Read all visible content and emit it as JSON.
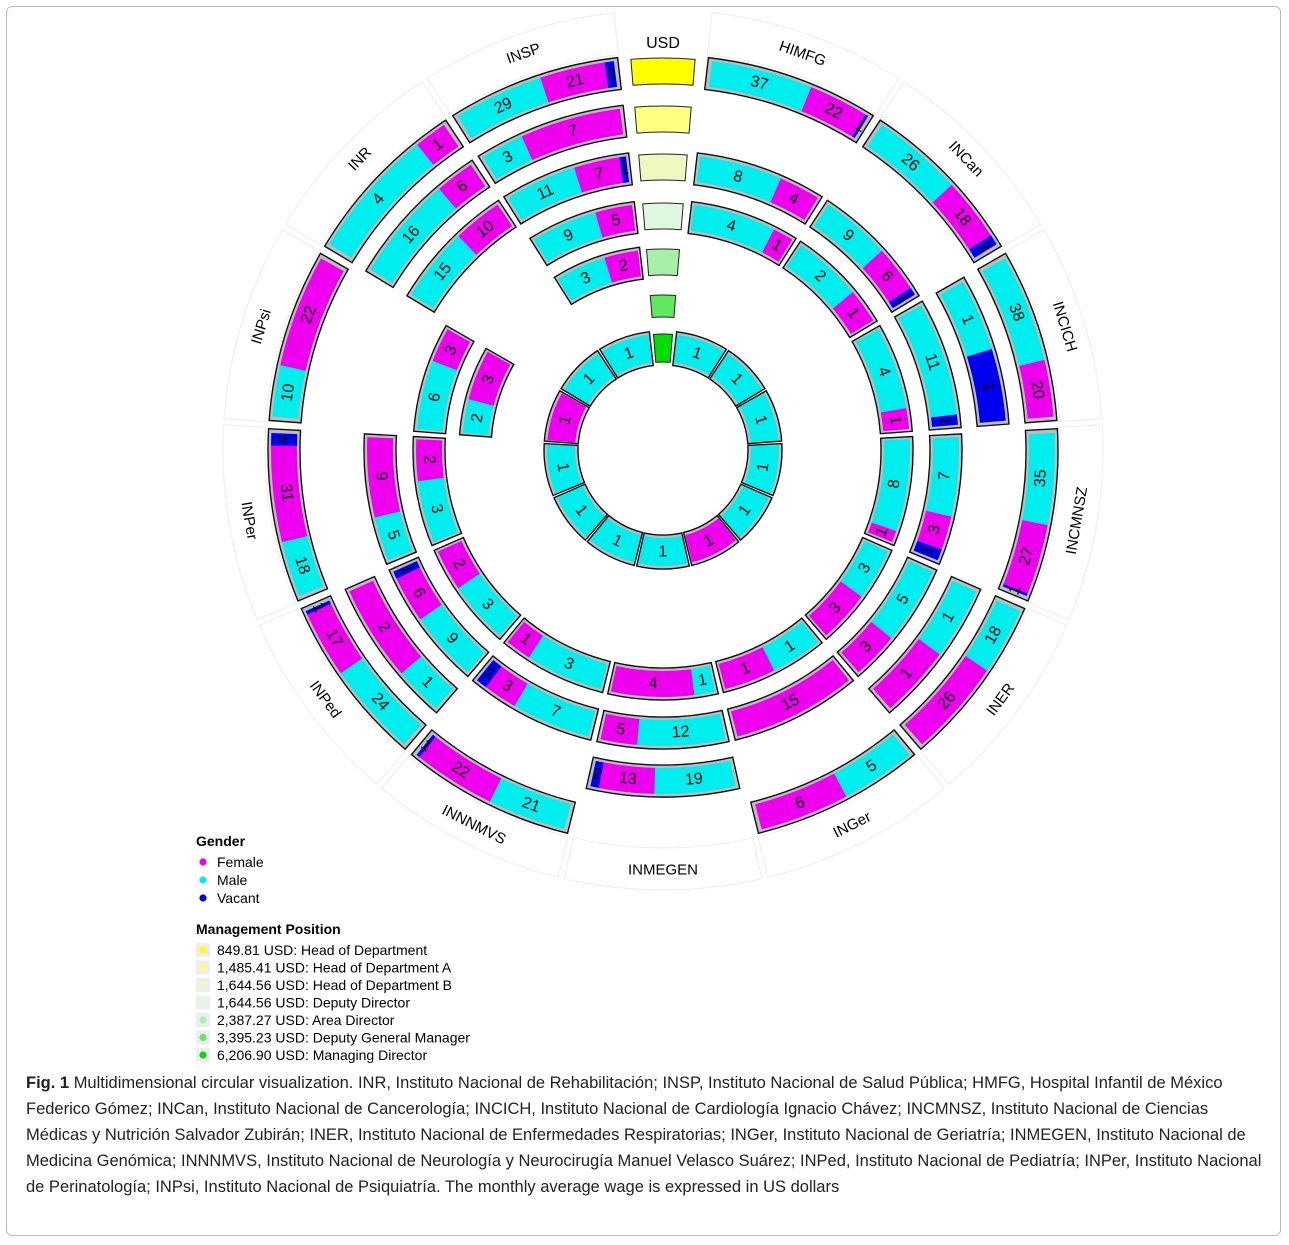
{
  "figure": {
    "label": "Fig. 1",
    "caption": "Multidimensional circular visualization. INR, Instituto Nacional de Rehabilitación; INSP, Instituto Nacional de Salud Pública; HMFG, Hospital Infantil de México Federico Gómez; INCan, Instituto Nacional de Cancerología; INCICH, Instituto Nacional de Cardiología Ignacio Chávez; INCMNSZ, Instituto Nacional de Ciencias Médicas y Nutrición Salvador Zubirán; INER, Instituto Nacional de Enfermedades Respiratorias; INGer, Instituto Nacional de Geriatría; INMEGEN, Instituto Nacional de Medicina Genómica; INNNMVS, Instituto Nacional de Neurología y Neurocirugía Manuel Velasco Suárez; INPed, Instituto Nacional de Pediatría; INPer, Instituto Nacional de Perinatología; INPsi, Instituto Nacional de Psiquiatría. The monthly average wage is expressed in US dollars"
  },
  "chart_data": {
    "type": "circular-stacked-bar",
    "usd_label": "USD",
    "institutions": [
      "HIMFG",
      "INCan",
      "INCICH",
      "INCMNSZ",
      "INER",
      "INGer",
      "INMEGEN",
      "INNNMVS",
      "INPed",
      "INPer",
      "INPsi",
      "INR",
      "INSP"
    ],
    "colors": {
      "Female": "#ee00ee",
      "Male": "#00eeee",
      "Vacant": "#0000ee"
    },
    "levels": [
      {
        "name": "Head of Department",
        "usd": "849.81",
        "color": "#ffff00",
        "values": {
          "HIMFG": {
            "Male": 37,
            "Female": 22,
            "Vacant": 1
          },
          "INCan": {
            "Male": 26,
            "Female": 18,
            "Vacant": 3
          },
          "INCICH": {
            "Male": 38,
            "Female": 20,
            "Vacant": 0
          },
          "INCMNSZ": {
            "Male": 35,
            "Female": 27,
            "Vacant": 1
          },
          "INER": {
            "Male": 18,
            "Female": 26,
            "Vacant": 0
          },
          "INGer": {
            "Male": 5,
            "Female": 6,
            "Vacant": 0
          },
          "INNNMVS": {
            "Male": 21,
            "Female": 22,
            "Vacant": 1
          },
          "INPed": {
            "Male": 24,
            "Female": 17,
            "Vacant": 1
          },
          "INPer": {
            "Male": 18,
            "Female": 31,
            "Vacant": 4
          },
          "INPsi": {
            "Male": 10,
            "Female": 22,
            "Vacant": 0
          },
          "INR": {
            "Male": 4,
            "Female": 1,
            "Vacant": 0
          },
          "INSP": {
            "Male": 29,
            "Female": 21,
            "Vacant": 3
          }
        }
      },
      {
        "name": "Head of Department A",
        "usd": "1,485.41",
        "color": "#ffff80",
        "values": {
          "INCICH": {
            "Male": 1,
            "Female": 0,
            "Vacant": 1
          },
          "INER": {
            "Male": 1,
            "Female": 1,
            "Vacant": 0
          },
          "INMEGEN": {
            "Male": 19,
            "Female": 13,
            "Vacant": 2
          },
          "INPed": {
            "Male": 1,
            "Female": 2,
            "Vacant": 0
          },
          "INR": {
            "Male": 16,
            "Female": 6,
            "Vacant": 0
          },
          "INSP": {
            "Male": 3,
            "Female": 7,
            "Vacant": 0
          }
        }
      },
      {
        "name": "Head of Department B",
        "usd": "1,644.56",
        "color": "#f0f8c0",
        "values": {
          "HIMFG": {
            "Male": 8,
            "Female": 4,
            "Vacant": 0
          },
          "INCan": {
            "Male": 9,
            "Female": 6,
            "Vacant": 1
          },
          "INCICH": {
            "Male": 11,
            "Female": 0,
            "Vacant": 1
          },
          "INCMNSZ": {
            "Male": 7,
            "Female": 3,
            "Vacant": 1
          },
          "INER": {
            "Male": 5,
            "Female": 3,
            "Vacant": 0
          },
          "INGer": {
            "Male": 0,
            "Female": 15,
            "Vacant": 0
          },
          "INMEGEN": {
            "Male": 12,
            "Female": 5,
            "Vacant": 0
          },
          "INNNMVS": {
            "Male": 7,
            "Female": 3,
            "Vacant": 1
          },
          "INPed": {
            "Male": 9,
            "Female": 6,
            "Vacant": 1
          },
          "INPer": {
            "Male": 5,
            "Female": 9,
            "Vacant": 0
          },
          "INR": {
            "Male": 15,
            "Female": 10,
            "Vacant": 0
          },
          "INSP": {
            "Male": 11,
            "Female": 7,
            "Vacant": 1
          }
        }
      },
      {
        "name": "Deputy Director",
        "usd": "1,644.56",
        "color": "#e0f8e0",
        "values": {
          "HIMFG": {
            "Male": 4,
            "Female": 1,
            "Vacant": 0
          },
          "INCan": {
            "Male": 2,
            "Female": 1,
            "Vacant": 0
          },
          "INCICH": {
            "Male": 4,
            "Female": 1,
            "Vacant": 0
          },
          "INCMNSZ": {
            "Male": 8,
            "Female": 1,
            "Vacant": 0
          },
          "INER": {
            "Male": 3,
            "Female": 3,
            "Vacant": 0
          },
          "INGer": {
            "Male": 1,
            "Female": 1,
            "Vacant": 0
          },
          "INMEGEN": {
            "Male": 1,
            "Female": 4,
            "Vacant": 0
          },
          "INNNMVS": {
            "Male": 3,
            "Female": 1,
            "Vacant": 0
          },
          "INPed": {
            "Male": 3,
            "Female": 2,
            "Vacant": 0
          },
          "INPer": {
            "Male": 3,
            "Female": 2,
            "Vacant": 0
          },
          "INPsi": {
            "Male": 6,
            "Female": 3,
            "Vacant": 0
          },
          "INSP": {
            "Male": 9,
            "Female": 5,
            "Vacant": 0
          }
        }
      },
      {
        "name": "Area Director",
        "usd": "2,387.27",
        "color": "#a8f0a8",
        "values": {
          "INPsi": {
            "Male": 2,
            "Female": 3,
            "Vacant": 0
          },
          "INSP": {
            "Male": 3,
            "Female": 2,
            "Vacant": 0
          }
        }
      },
      {
        "name": "Deputy General Manager",
        "usd": "3,395.23",
        "color": "#60e860",
        "values": {}
      },
      {
        "name": "Managing Director",
        "usd": "6,206.90",
        "color": "#00dd00",
        "values": {
          "HIMFG": {
            "Male": 1,
            "Female": 0,
            "Vacant": 0
          },
          "INCan": {
            "Male": 1,
            "Female": 0,
            "Vacant": 0
          },
          "INCICH": {
            "Male": 1,
            "Female": 0,
            "Vacant": 0
          },
          "INCMNSZ": {
            "Male": 1,
            "Female": 0,
            "Vacant": 0
          },
          "INER": {
            "Male": 1,
            "Female": 0,
            "Vacant": 0
          },
          "INGer": {
            "Male": 0,
            "Female": 1,
            "Vacant": 0
          },
          "INMEGEN": {
            "Male": 1,
            "Female": 0,
            "Vacant": 0
          },
          "INNNMVS": {
            "Male": 1,
            "Female": 0,
            "Vacant": 0
          },
          "INPed": {
            "Male": 1,
            "Female": 0,
            "Vacant": 0
          },
          "INPer": {
            "Male": 1,
            "Female": 0,
            "Vacant": 0
          },
          "INPsi": {
            "Male": 0,
            "Female": 1,
            "Vacant": 0
          },
          "INR": {
            "Male": 1,
            "Female": 0,
            "Vacant": 0
          },
          "INSP": {
            "Male": 1,
            "Female": 0,
            "Vacant": 0
          }
        }
      }
    ],
    "legend": {
      "gender_title": "Gender",
      "gender_items": [
        {
          "label": "Female",
          "color": "#ee00ee"
        },
        {
          "label": "Male",
          "color": "#00eeee"
        },
        {
          "label": "Vacant",
          "color": "#0000ee"
        }
      ],
      "position_title": "Management Position",
      "position_items": [
        {
          "label": "849.81 USD: Head of Department",
          "color": "#ffff00"
        },
        {
          "label": "1,485.41 USD: Head of Department A",
          "color": "#ffff80"
        },
        {
          "label": "1,644.56 USD: Head of Department B",
          "color": "#f0f8c0"
        },
        {
          "label": "1,644.56 USD: Deputy Director",
          "color": "#e0f8e0"
        },
        {
          "label": "2,387.27 USD: Area Director",
          "color": "#a8f0a8"
        },
        {
          "label": "3,395.23 USD: Deputy General Manager",
          "color": "#60e860"
        },
        {
          "label": "6,206.90 USD: Managing Director",
          "color": "#00dd00"
        }
      ]
    }
  }
}
